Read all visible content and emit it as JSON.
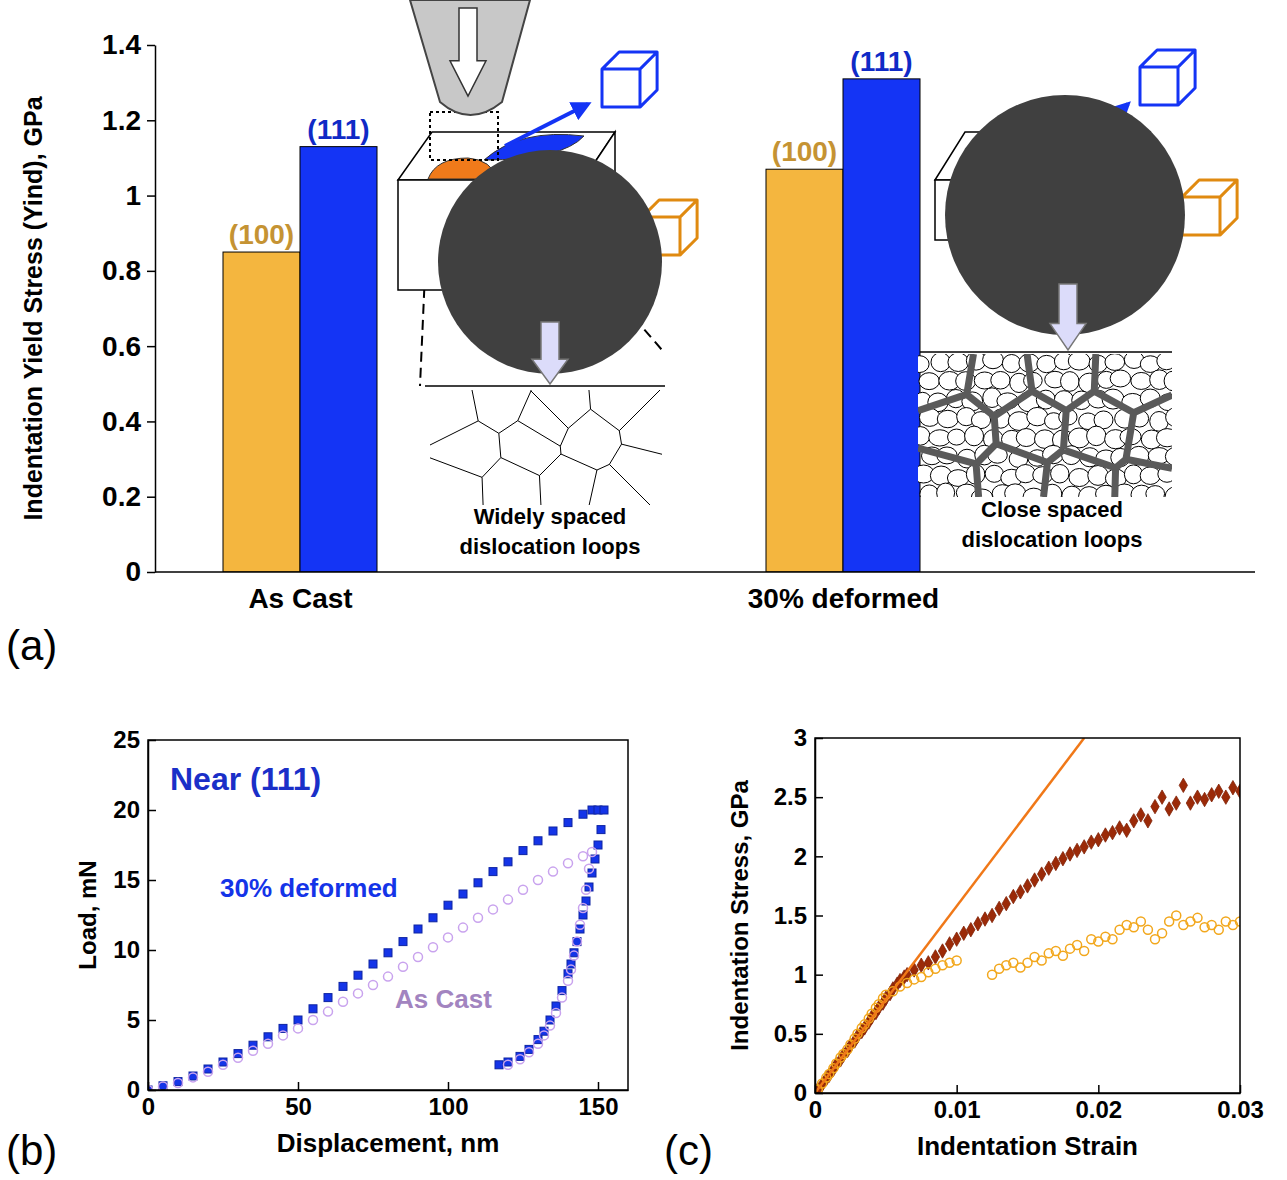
{
  "chart_data": [
    {
      "type": "bar",
      "panel_label": "(a)",
      "y_label": "Indentation Yield Stress (Yind), GPa",
      "categories": [
        "As Cast",
        "30% deformed"
      ],
      "series": [
        {
          "name": "(100)",
          "color": "#f4b63f",
          "values": [
            0.85,
            1.07
          ]
        },
        {
          "name": "(111)",
          "color": "#1434f5",
          "values": [
            1.13,
            1.31
          ]
        }
      ],
      "ylim": [
        0,
        1.4
      ],
      "yticks": [
        0,
        0.2,
        0.4,
        0.6,
        0.8,
        1,
        1.2,
        1.4
      ],
      "annotations": [
        "Widely spaced dislocation loops",
        "Close spaced dislocation loops"
      ]
    },
    {
      "type": "scatter",
      "panel_label": "(b)",
      "title": "Near (111)",
      "x_label": "Displacement, nm",
      "y_label": "Load, mN",
      "xlim": [
        0,
        160
      ],
      "xticks": [
        0,
        50,
        100,
        150
      ],
      "ylim": [
        0,
        25
      ],
      "yticks": [
        0,
        5,
        10,
        15,
        20,
        25
      ],
      "series": [
        {
          "name": "30% deformed",
          "color": "#1434e8",
          "marker": "square",
          "x": [
            0,
            5,
            10,
            15,
            20,
            25,
            30,
            35,
            40,
            45,
            50,
            55,
            60,
            65,
            70,
            75,
            80,
            85,
            90,
            95,
            100,
            105,
            110,
            115,
            120,
            125,
            130,
            135,
            140,
            145,
            148,
            150,
            152,
            151,
            150,
            149,
            148,
            147,
            146,
            145,
            144,
            143,
            142,
            141,
            140,
            138,
            136,
            134,
            132,
            130,
            127,
            124,
            120,
            117
          ],
          "values": [
            0,
            0.3,
            0.6,
            1.0,
            1.5,
            2.0,
            2.6,
            3.2,
            3.8,
            4.4,
            5.0,
            5.8,
            6.6,
            7.4,
            8.2,
            9.0,
            9.8,
            10.6,
            11.5,
            12.3,
            13.2,
            14.0,
            14.8,
            15.6,
            16.3,
            17.1,
            17.8,
            18.5,
            19.1,
            19.7,
            20.0,
            20.0,
            20.0,
            18.6,
            17.5,
            16.5,
            15.5,
            14.5,
            13.5,
            12.5,
            11.5,
            10.6,
            9.8,
            9.0,
            8.3,
            7.1,
            6.0,
            5.0,
            4.2,
            3.6,
            2.9,
            2.4,
            2.0,
            1.8
          ]
        },
        {
          "name": "As Cast",
          "color": "#c9a3ee",
          "marker": "circle",
          "x": [
            0,
            5,
            10,
            15,
            20,
            25,
            30,
            35,
            40,
            45,
            50,
            55,
            60,
            65,
            70,
            75,
            80,
            85,
            90,
            95,
            100,
            105,
            110,
            115,
            120,
            125,
            130,
            135,
            140,
            145,
            148,
            147,
            146,
            145,
            144,
            143,
            142,
            141,
            140,
            138,
            136,
            134,
            132,
            130,
            127,
            124,
            120
          ],
          "values": [
            0,
            0.25,
            0.5,
            0.9,
            1.3,
            1.8,
            2.3,
            2.8,
            3.3,
            3.9,
            4.4,
            5.0,
            5.6,
            6.3,
            6.9,
            7.5,
            8.1,
            8.8,
            9.5,
            10.2,
            10.9,
            11.6,
            12.3,
            12.9,
            13.6,
            14.3,
            15.0,
            15.6,
            16.2,
            16.7,
            17.0,
            15.8,
            14.3,
            13.0,
            11.8,
            10.6,
            9.6,
            8.6,
            7.8,
            6.6,
            5.5,
            4.6,
            3.9,
            3.3,
            2.7,
            2.2,
            1.8
          ]
        }
      ]
    },
    {
      "type": "scatter",
      "panel_label": "(c)",
      "x_label": "Indentation Strain",
      "y_label": "Indentation Stress, GPa",
      "xlim": [
        0,
        0.03
      ],
      "xticks": [
        0,
        0.01,
        0.02,
        0.03
      ],
      "ylim": [
        0,
        3
      ],
      "yticks": [
        0,
        0.5,
        1,
        1.5,
        2,
        2.5,
        3
      ],
      "series": [
        {
          "color": "#9b2a08",
          "marker": "diamond",
          "x": [
            0.0002,
            0.0005,
            0.0008,
            0.001,
            0.0013,
            0.0015,
            0.0018,
            0.002,
            0.0023,
            0.0025,
            0.0028,
            0.003,
            0.0033,
            0.0035,
            0.0038,
            0.004,
            0.0043,
            0.0045,
            0.0048,
            0.005,
            0.0053,
            0.0055,
            0.0058,
            0.006,
            0.0063,
            0.0065,
            0.007,
            0.0075,
            0.008,
            0.0085,
            0.009,
            0.0095,
            0.01,
            0.0105,
            0.011,
            0.0115,
            0.012,
            0.0125,
            0.013,
            0.0135,
            0.014,
            0.0145,
            0.015,
            0.0155,
            0.016,
            0.0165,
            0.017,
            0.0175,
            0.018,
            0.0185,
            0.019,
            0.0195,
            0.02,
            0.0205,
            0.021,
            0.0215,
            0.022,
            0.0225,
            0.023,
            0.0235,
            0.024,
            0.0245,
            0.025,
            0.0255,
            0.026,
            0.0265,
            0.027,
            0.0275,
            0.028,
            0.0285,
            0.029,
            0.0295,
            0.03
          ],
          "values": [
            0.03,
            0.07,
            0.12,
            0.15,
            0.2,
            0.24,
            0.28,
            0.32,
            0.36,
            0.4,
            0.44,
            0.48,
            0.52,
            0.55,
            0.6,
            0.64,
            0.68,
            0.72,
            0.76,
            0.8,
            0.84,
            0.88,
            0.92,
            0.95,
            0.98,
            1.0,
            1.04,
            1.08,
            1.1,
            1.15,
            1.2,
            1.26,
            1.3,
            1.35,
            1.38,
            1.43,
            1.47,
            1.5,
            1.56,
            1.6,
            1.66,
            1.7,
            1.75,
            1.8,
            1.85,
            1.9,
            1.94,
            1.98,
            2.02,
            2.05,
            2.08,
            2.12,
            2.14,
            2.18,
            2.2,
            2.24,
            2.22,
            2.3,
            2.35,
            2.3,
            2.42,
            2.5,
            2.4,
            2.45,
            2.6,
            2.45,
            2.5,
            2.48,
            2.52,
            2.55,
            2.5,
            2.58,
            2.55
          ]
        },
        {
          "color": "#f2a71c",
          "marker": "circle",
          "x": [
            0.0002,
            0.0005,
            0.0008,
            0.001,
            0.0013,
            0.0015,
            0.0018,
            0.002,
            0.0023,
            0.0025,
            0.0028,
            0.003,
            0.0033,
            0.0035,
            0.0038,
            0.004,
            0.0043,
            0.0045,
            0.0048,
            0.005,
            0.0055,
            0.006,
            0.0065,
            0.007,
            0.0075,
            0.008,
            0.0085,
            0.009,
            0.0095,
            0.01,
            0.0125,
            0.013,
            0.0135,
            0.014,
            0.0145,
            0.015,
            0.0155,
            0.016,
            0.0165,
            0.017,
            0.0175,
            0.018,
            0.0185,
            0.019,
            0.0195,
            0.02,
            0.0205,
            0.021,
            0.0215,
            0.022,
            0.0225,
            0.023,
            0.0235,
            0.024,
            0.0245,
            0.025,
            0.0255,
            0.026,
            0.0265,
            0.027,
            0.0275,
            0.028,
            0.0285,
            0.029,
            0.0295,
            0.03
          ],
          "values": [
            0.03,
            0.08,
            0.13,
            0.16,
            0.21,
            0.25,
            0.3,
            0.33,
            0.37,
            0.41,
            0.46,
            0.5,
            0.55,
            0.58,
            0.63,
            0.67,
            0.72,
            0.75,
            0.8,
            0.83,
            0.86,
            0.9,
            0.93,
            0.96,
            0.98,
            1.02,
            1.05,
            1.08,
            1.1,
            1.12,
            1.0,
            1.05,
            1.08,
            1.1,
            1.06,
            1.1,
            1.15,
            1.12,
            1.18,
            1.2,
            1.16,
            1.22,
            1.25,
            1.2,
            1.3,
            1.28,
            1.32,
            1.3,
            1.38,
            1.42,
            1.4,
            1.45,
            1.38,
            1.3,
            1.35,
            1.45,
            1.5,
            1.42,
            1.45,
            1.48,
            1.4,
            1.42,
            1.38,
            1.45,
            1.42,
            1.45
          ]
        },
        {
          "type": "line",
          "color": "#f07818",
          "x": [
            0,
            0.019
          ],
          "values": [
            0,
            3
          ]
        }
      ]
    }
  ]
}
